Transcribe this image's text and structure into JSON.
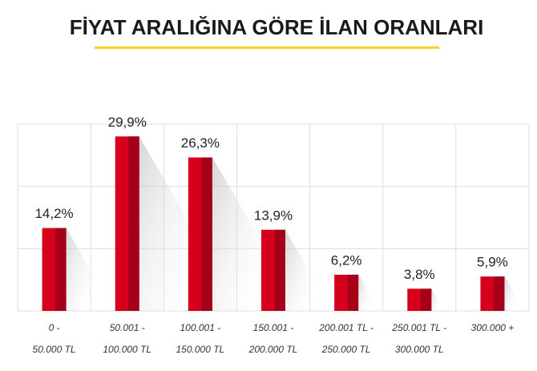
{
  "chart_data": {
    "type": "bar",
    "title": "FİYAT ARALIĞINA GÖRE İLAN ORANLARI",
    "categories": [
      [
        "0 -",
        "50.000 TL"
      ],
      [
        "50.001 -",
        "100.000 TL"
      ],
      [
        "100.001 -",
        "150.000 TL"
      ],
      [
        "150.001 -",
        "200.000 TL"
      ],
      [
        "200.001 TL -",
        "250.000 TL"
      ],
      [
        "250.001 TL -",
        "300.000 TL"
      ],
      [
        "300.000 +"
      ]
    ],
    "values": [
      14.2,
      29.9,
      26.3,
      13.9,
      6.2,
      3.8,
      5.9
    ],
    "value_labels": [
      "14,2%",
      "29,9%",
      "26,3%",
      "13,9%",
      "6,2%",
      "3,8%",
      "5,9%"
    ],
    "color": "#d6001c",
    "ylim": [
      0,
      32
    ],
    "grid": true
  }
}
